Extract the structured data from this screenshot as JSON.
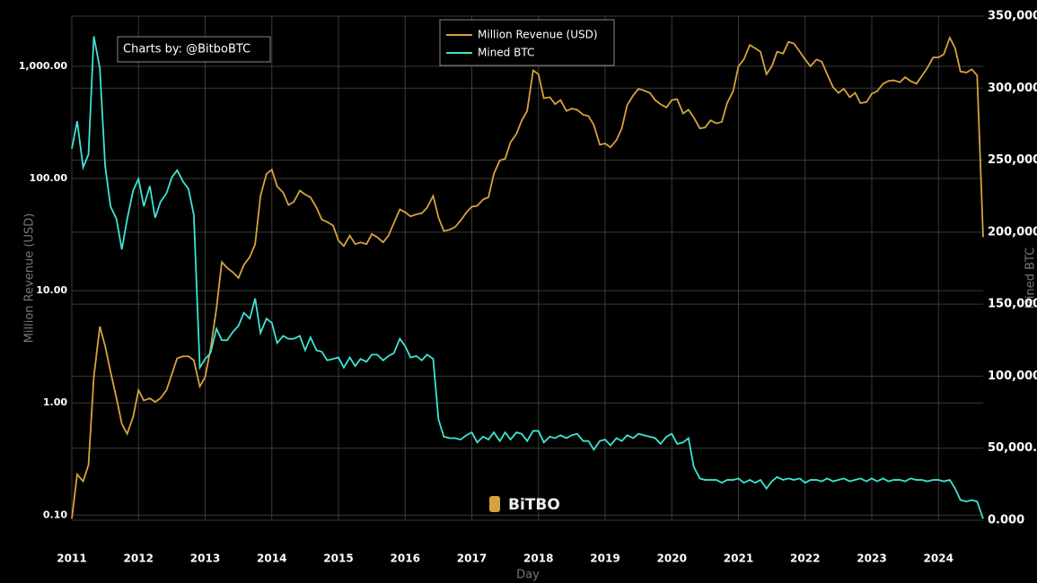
{
  "chart_data": {
    "type": "line",
    "annotation": "Charts by: @BitboBTC",
    "watermark": "BiTBO",
    "x_label": "Day",
    "y_label": "Million Revenue (USD)",
    "y2_label": "Mined BTC",
    "yscale": "log",
    "grid": true,
    "legend": "top",
    "xlim": [
      2011,
      2024.67
    ],
    "xticks": [
      2011,
      2012,
      2013,
      2014,
      2015,
      2016,
      2017,
      2018,
      2019,
      2020,
      2021,
      2022,
      2023,
      2024
    ],
    "ylim": [
      0.09,
      2800
    ],
    "yticks": [
      {
        "value": 0.1,
        "label": "0.10"
      },
      {
        "value": 1,
        "label": "1.00"
      },
      {
        "value": 10,
        "label": "10.00"
      },
      {
        "value": 100,
        "label": "100.00"
      },
      {
        "value": 1000,
        "label": "1,000.00"
      }
    ],
    "y2lim": [
      0,
      350000
    ],
    "y2ticks": [
      {
        "value": 0,
        "label": "0.000"
      },
      {
        "value": 50000,
        "label": "50,000."
      },
      {
        "value": 100000,
        "label": "100,000"
      },
      {
        "value": 150000,
        "label": "150,000"
      },
      {
        "value": 200000,
        "label": "200,000"
      },
      {
        "value": 250000,
        "label": "250,000"
      },
      {
        "value": 300000,
        "label": "300,000"
      },
      {
        "value": 350000,
        "label": "350,000"
      }
    ],
    "x": [
      2011.0,
      2011.08,
      2011.17,
      2011.25,
      2011.33,
      2011.42,
      2011.5,
      2011.58,
      2011.67,
      2011.75,
      2011.83,
      2011.92,
      2012.0,
      2012.08,
      2012.17,
      2012.25,
      2012.33,
      2012.42,
      2012.5,
      2012.58,
      2012.67,
      2012.75,
      2012.83,
      2012.92,
      2013.0,
      2013.08,
      2013.17,
      2013.25,
      2013.33,
      2013.42,
      2013.5,
      2013.58,
      2013.67,
      2013.75,
      2013.83,
      2013.92,
      2014.0,
      2014.08,
      2014.17,
      2014.25,
      2014.33,
      2014.42,
      2014.5,
      2014.58,
      2014.67,
      2014.75,
      2014.83,
      2014.92,
      2015.0,
      2015.08,
      2015.17,
      2015.25,
      2015.33,
      2015.42,
      2015.5,
      2015.58,
      2015.67,
      2015.75,
      2015.83,
      2015.92,
      2016.0,
      2016.08,
      2016.17,
      2016.25,
      2016.33,
      2016.42,
      2016.5,
      2016.58,
      2016.67,
      2016.75,
      2016.83,
      2016.92,
      2017.0,
      2017.08,
      2017.17,
      2017.25,
      2017.33,
      2017.42,
      2017.5,
      2017.58,
      2017.67,
      2017.75,
      2017.83,
      2017.92,
      2018.0,
      2018.08,
      2018.17,
      2018.25,
      2018.33,
      2018.42,
      2018.5,
      2018.58,
      2018.67,
      2018.75,
      2018.83,
      2018.92,
      2019.0,
      2019.08,
      2019.17,
      2019.25,
      2019.33,
      2019.42,
      2019.5,
      2019.58,
      2019.67,
      2019.75,
      2019.83,
      2019.92,
      2020.0,
      2020.08,
      2020.17,
      2020.25,
      2020.33,
      2020.42,
      2020.5,
      2020.58,
      2020.67,
      2020.75,
      2020.83,
      2020.92,
      2021.0,
      2021.08,
      2021.17,
      2021.25,
      2021.33,
      2021.42,
      2021.5,
      2021.58,
      2021.67,
      2021.75,
      2021.83,
      2021.92,
      2022.0,
      2022.08,
      2022.17,
      2022.25,
      2022.33,
      2022.42,
      2022.5,
      2022.58,
      2022.67,
      2022.75,
      2022.83,
      2022.92,
      2023.0,
      2023.08,
      2023.17,
      2023.25,
      2023.33,
      2023.42,
      2023.5,
      2023.58,
      2023.67,
      2023.75,
      2023.83,
      2023.92,
      2024.0,
      2024.08,
      2024.17,
      2024.25,
      2024.33,
      2024.42,
      2024.5,
      2024.58,
      2024.67
    ],
    "series": [
      {
        "name": "Million Revenue (USD)",
        "color": "#d6a23e",
        "values": [
          0.093,
          0.23,
          0.2,
          0.28,
          1.7,
          4.8,
          3.2,
          1.9,
          1.1,
          0.65,
          0.53,
          0.75,
          1.3,
          1.05,
          1.1,
          1.02,
          1.1,
          1.3,
          1.8,
          2.5,
          2.6,
          2.6,
          2.4,
          1.4,
          1.7,
          3,
          7,
          18,
          16,
          14.5,
          13,
          17,
          20,
          26,
          70,
          110,
          120,
          85,
          75,
          58,
          62,
          78,
          72,
          68,
          55,
          43,
          41,
          38,
          28,
          25,
          31,
          26,
          27,
          26,
          32,
          30,
          27,
          31,
          40,
          53,
          50,
          46,
          48,
          49,
          55,
          70,
          45,
          34,
          35,
          37,
          42,
          50,
          56,
          57,
          65,
          68,
          110,
          145,
          150,
          210,
          250,
          330,
          400,
          920,
          850,
          520,
          530,
          460,
          500,
          400,
          420,
          410,
          370,
          360,
          300,
          200,
          205,
          190,
          220,
          280,
          450,
          550,
          630,
          610,
          580,
          500,
          460,
          430,
          500,
          510,
          380,
          410,
          350,
          280,
          285,
          330,
          310,
          320,
          470,
          600,
          1000,
          1150,
          1550,
          1450,
          1350,
          850,
          1000,
          1350,
          1300,
          1650,
          1600,
          1350,
          1150,
          1000,
          1150,
          1100,
          850,
          650,
          580,
          630,
          530,
          580,
          470,
          480,
          570,
          600,
          700,
          740,
          750,
          720,
          800,
          740,
          700,
          820,
          960,
          1200,
          1200,
          1280,
          1800,
          1450,
          900,
          880,
          940,
          830,
          30
        ]
      },
      {
        "name": "Mined BTC",
        "color": "#3fe3d2",
        "axis": "y2",
        "values": [
          258000,
          277000,
          245000,
          254000,
          336000,
          314000,
          246000,
          218000,
          209000,
          188000,
          209000,
          229000,
          237000,
          218000,
          232000,
          210000,
          221000,
          227000,
          238000,
          243000,
          235000,
          230000,
          212000,
          106000,
          112000,
          116000,
          133000,
          125000,
          125000,
          131000,
          135000,
          144000,
          140000,
          154000,
          130000,
          140000,
          137000,
          123000,
          128000,
          126000,
          126000,
          128000,
          118000,
          127000,
          118000,
          117000,
          111000,
          112000,
          113000,
          106000,
          113000,
          107000,
          112000,
          110000,
          115000,
          115000,
          111000,
          114000,
          116000,
          126000,
          121000,
          113000,
          114000,
          111000,
          115000,
          112000,
          70000,
          58000,
          57000,
          57000,
          56000,
          59000,
          61000,
          54000,
          58000,
          56000,
          61000,
          55000,
          61000,
          56000,
          61000,
          60000,
          55000,
          62000,
          62000,
          54000,
          58000,
          57000,
          59000,
          57000,
          59000,
          60000,
          55000,
          55000,
          49000,
          55000,
          56000,
          52000,
          57000,
          55000,
          59000,
          57000,
          60000,
          59000,
          58000,
          57000,
          53000,
          58000,
          60000,
          53000,
          54000,
          57000,
          37000,
          29000,
          28000,
          28000,
          28000,
          26000,
          28000,
          28000,
          29000,
          26000,
          28000,
          26000,
          28000,
          22000,
          27000,
          30000,
          28000,
          29000,
          28000,
          29000,
          26000,
          28000,
          28000,
          27000,
          29000,
          27000,
          28000,
          29000,
          27000,
          28000,
          29000,
          27000,
          29000,
          27000,
          29000,
          27000,
          28000,
          28000,
          27000,
          29000,
          28000,
          28000,
          27000,
          28000,
          28000,
          27000,
          28000,
          22000,
          14000,
          13000,
          14000,
          13000,
          1000
        ]
      }
    ]
  }
}
